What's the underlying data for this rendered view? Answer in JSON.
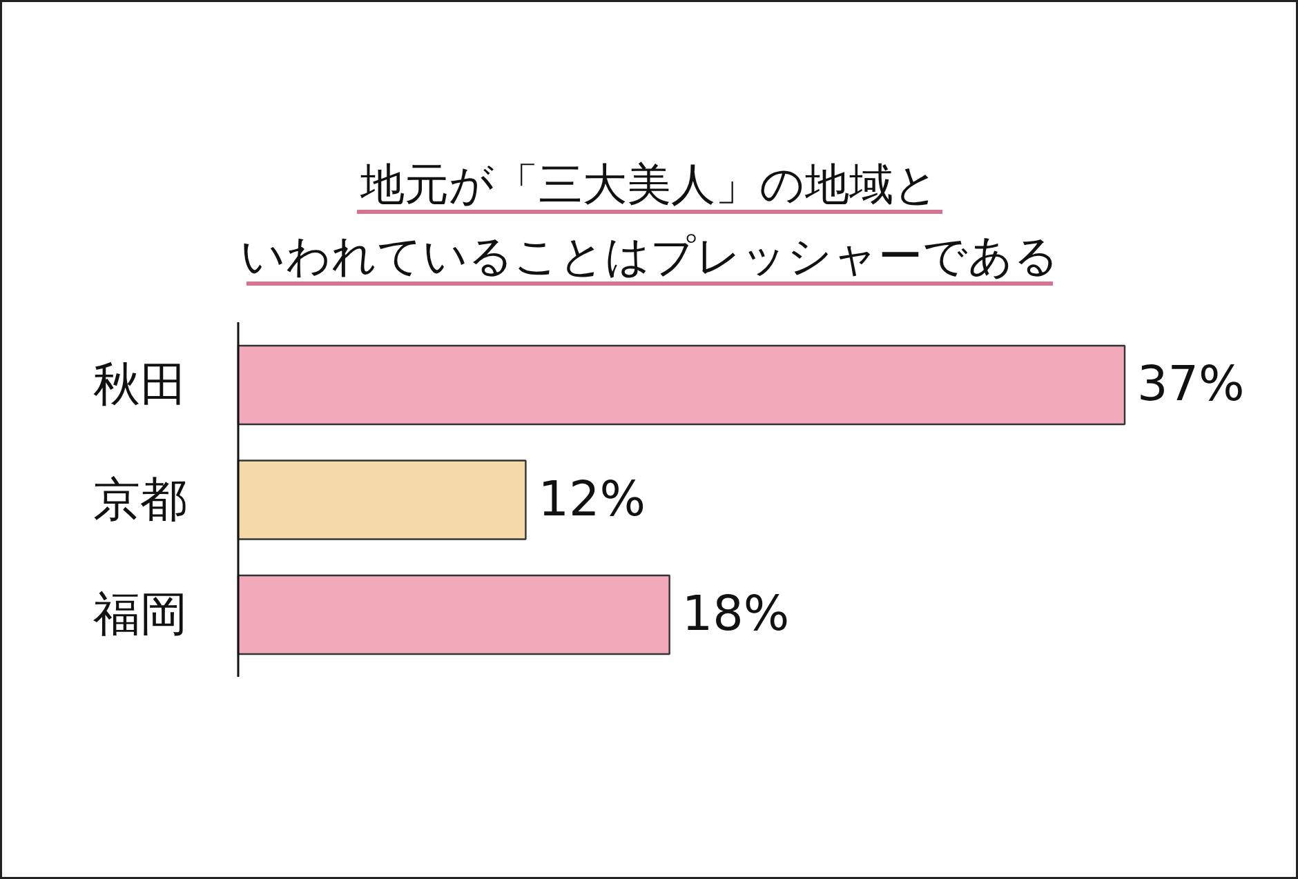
{
  "chart_data": {
    "type": "bar",
    "orientation": "horizontal",
    "title": "地元が「三大美人」の地域といわれていることはプレッシャーである",
    "categories": [
      "秋田",
      "京都",
      "福岡"
    ],
    "values": [
      37,
      12,
      18
    ],
    "colors": [
      "#f2a9b9",
      "#f5d9a9",
      "#f2a9b9"
    ],
    "value_labels": [
      "37%",
      "12%",
      "18%"
    ]
  }
}
